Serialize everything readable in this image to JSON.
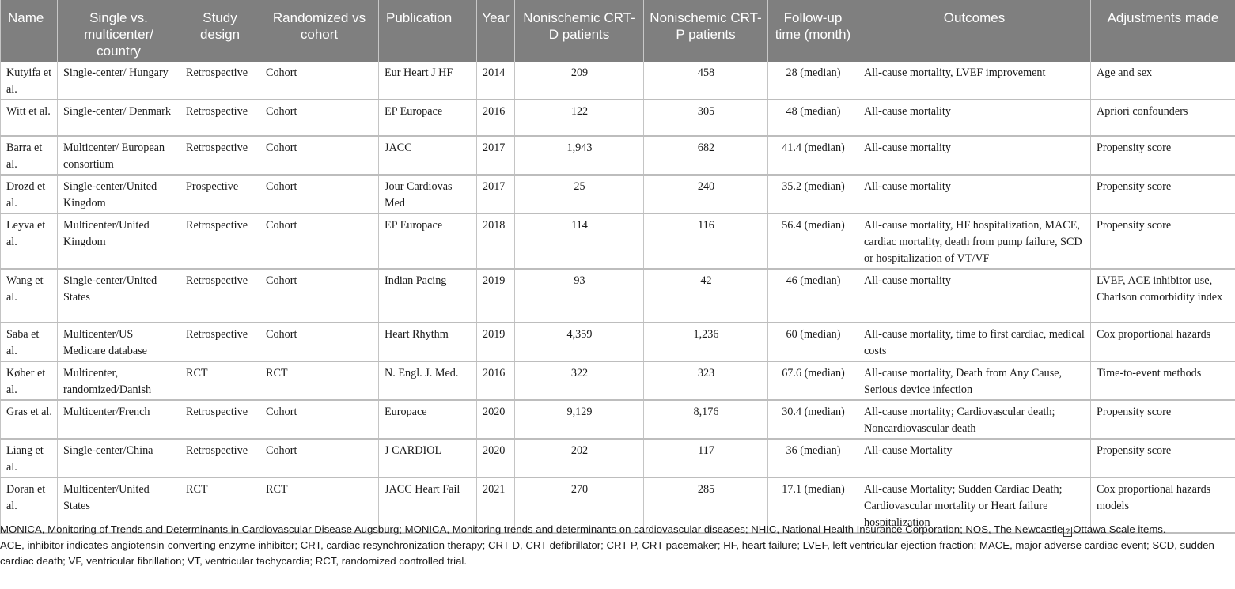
{
  "headers": [
    "Name",
    "Single vs. multicenter/ country",
    "Study design",
    "Randomized vs cohort",
    "Publication",
    "Year",
    "Nonischemic CRT-D patients",
    "Nonischemic CRT-P patients",
    "Follow-up time (month)",
    "Outcomes",
    "Adjustments made"
  ],
  "rows": [
    [
      "Kutyifa et al.",
      "Single-center/ Hungary",
      "Retrospective",
      "Cohort",
      "Eur Heart J HF",
      "2014",
      "209",
      "458",
      "28 (median)",
      "All-cause mortality, LVEF improvement",
      "Age and sex"
    ],
    [
      "Witt et al.",
      "Single-center/ Denmark",
      "Retrospective",
      "Cohort",
      "EP Europace",
      "2016",
      "122",
      "305",
      "48 (median)",
      "All-cause mortality",
      "Apriori confounders"
    ],
    [
      "Barra et al.",
      "Multicenter/ European consortium",
      "Retrospective",
      "Cohort",
      "JACC",
      "2017",
      "1,943",
      "682",
      "41.4 (median)",
      "All-cause mortality",
      "Propensity score"
    ],
    [
      "Drozd et al.",
      "Single-center/United Kingdom",
      "Prospective",
      "Cohort",
      "Jour Cardiovas Med",
      "2017",
      "25",
      "240",
      "35.2 (median)",
      "All-cause mortality",
      "Propensity score"
    ],
    [
      "Leyva et al.",
      "Multicenter/United Kingdom",
      "Retrospective",
      "Cohort",
      "EP Europace",
      "2018",
      "114",
      "116",
      "56.4 (median)",
      "All-cause mortality, HF hospitalization, MACE, cardiac mortality, death from pump failure, SCD or hospitalization of VT/VF",
      "Propensity score"
    ],
    [
      "Wang et al.",
      "Single-center/United States",
      "Retrospective",
      "Cohort",
      "Indian Pacing",
      "2019",
      "93",
      "42",
      "46 (median)",
      "All-cause mortality",
      "LVEF, ACE inhibitor use, Charlson comorbidity index"
    ],
    [
      "Saba et al.",
      "Multicenter/US Medicare database",
      "Retrospective",
      "Cohort",
      "Heart Rhythm",
      "2019",
      "4,359",
      "1,236",
      "60 (median)",
      "All-cause mortality, time to first cardiac, medical costs",
      "Cox proportional hazards"
    ],
    [
      "Køber et al.",
      "Multicenter, randomized/Danish",
      "RCT",
      "RCT",
      "N. Engl. J. Med.",
      "2016",
      "322",
      "323",
      "67.6 (median)",
      "All-cause mortality, Death from Any Cause, Serious device infection",
      "Time-to-event methods"
    ],
    [
      "Gras et al.",
      " Multicenter/French",
      "Retrospective",
      "Cohort",
      "Europace",
      "2020",
      "9,129",
      "8,176",
      "30.4 (median)",
      "All-cause mortality; Cardiovascular death; Noncardiovascular death",
      "Propensity score"
    ],
    [
      "Liang et al.",
      "Single-center/China",
      "Retrospective",
      "Cohort",
      "J CARDIOL",
      "2020",
      "202",
      "117",
      "36 (median)",
      "All-cause Mortality",
      "Propensity score"
    ],
    [
      "Doran et al.",
      "Multicenter/United States",
      "RCT",
      "RCT",
      "JACC Heart Fail",
      "2021",
      "270",
      "285",
      "17.1 (median)",
      "All-cause Mortality; Sudden Cardiac Death; Cardiovascular mortality or Heart failure hospitalization",
      "Cox proportional hazards models"
    ]
  ],
  "footnotes": {
    "line1_before": "MONICA, Monitoring of Trends and Determinants in Cardiovascular Disease Augsburg; MONICA, Monitoring trends and determinants on cardiovascular diseases; NHIC, National Health Insurance Corporation; NOS, The Newcastle",
    "line1_glyph": "?",
    "line1_after": "Ottawa Scale items.",
    "line2": "ACE, inhibitor indicates angiotensin-converting enzyme inhibitor; CRT, cardiac resynchronization therapy; CRT-D, CRT defibrillator; CRT-P, CRT pacemaker; HF, heart failure; LVEF, left ventricular ejection fraction; MACE, major adverse cardiac event; SCD, sudden cardiac death; VF, ventricular fibrillation; VT, ventricular tachycardia; RCT, randomized controlled trial."
  }
}
